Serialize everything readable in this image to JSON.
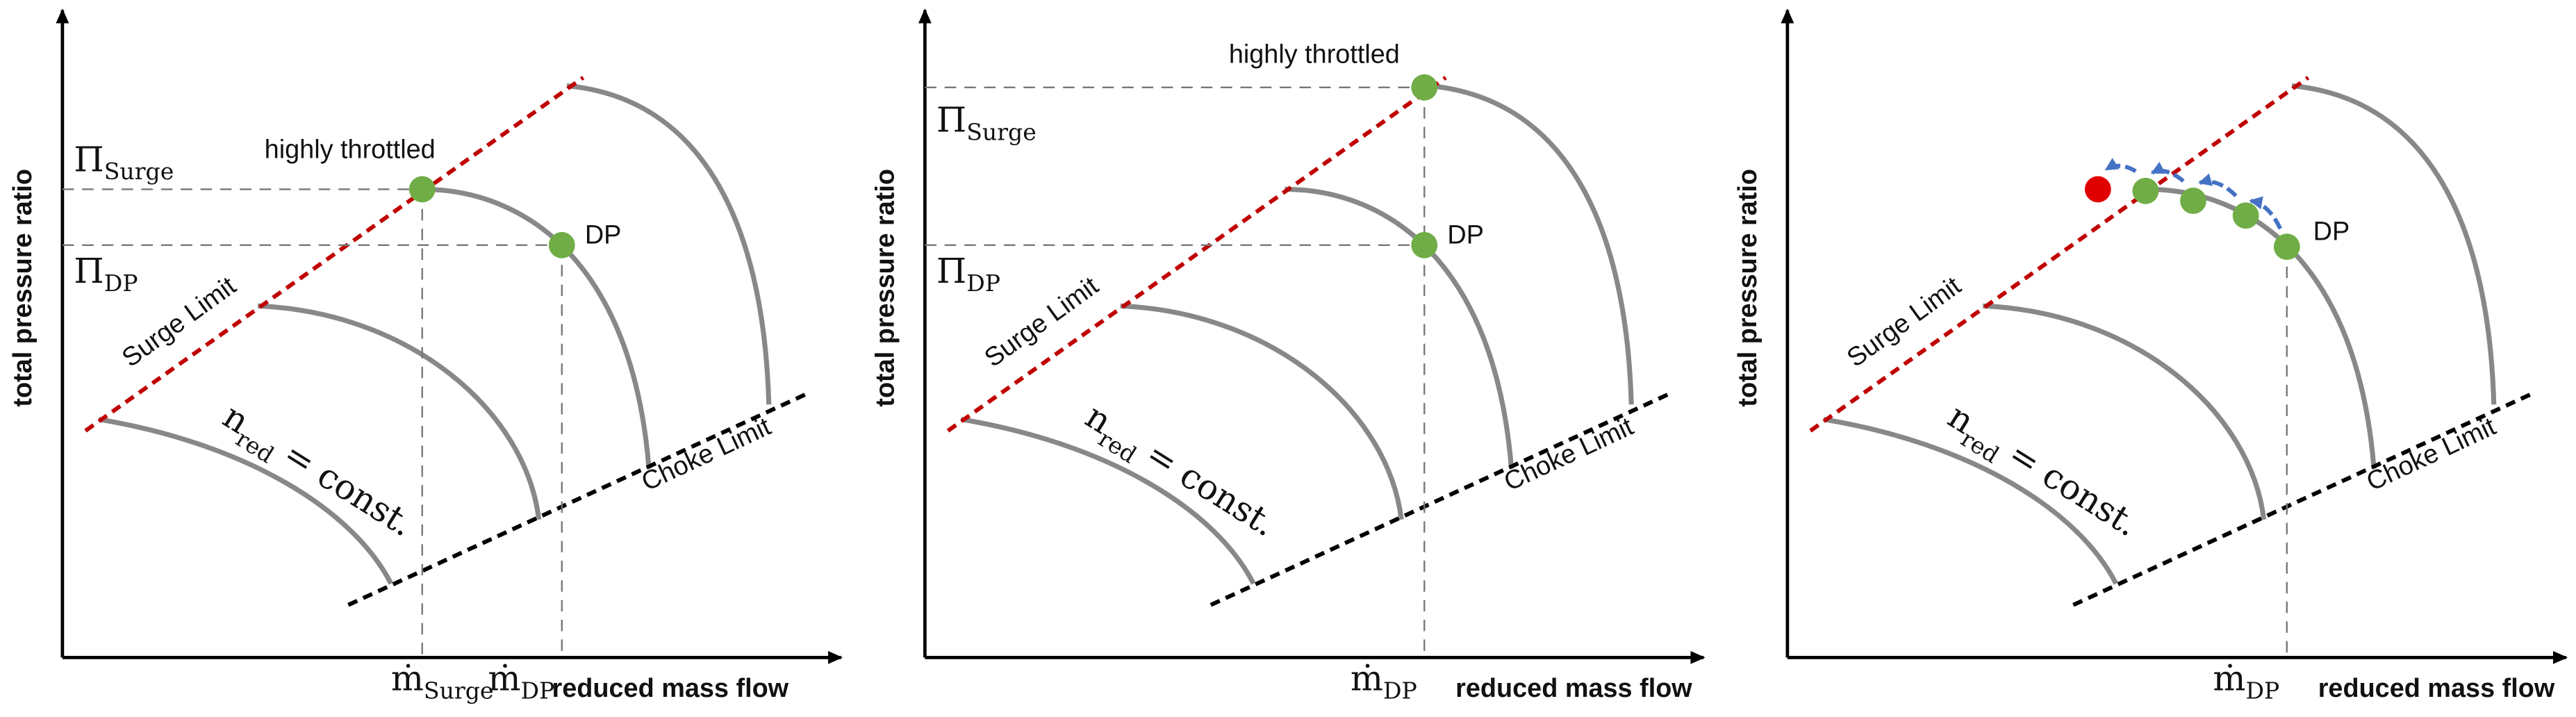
{
  "panels": [
    {
      "y_axis_label": "total pressure ratio",
      "x_axis_label": "reduced mass flow",
      "highly_throttled": "highly throttled",
      "dp": "DP",
      "surge_limit": "Surge Limit",
      "choke_limit": "Choke Limit",
      "speed_line": {
        "symbol": "n",
        "subscript": "red",
        "rest": "= const."
      },
      "pi_surge": {
        "symbol": "Π",
        "subscript": "Surge"
      },
      "pi_dp": {
        "symbol": "Π",
        "subscript": "DP"
      },
      "m_surge": {
        "symbol": "ṁ",
        "subscript": "Surge"
      },
      "m_dp": {
        "symbol": "ṁ",
        "subscript": "DP"
      }
    },
    {
      "y_axis_label": "total pressure ratio",
      "x_axis_label": "reduced mass flow",
      "highly_throttled": "highly throttled",
      "dp": "DP",
      "surge_limit": "Surge Limit",
      "choke_limit": "Choke Limit",
      "speed_line": {
        "symbol": "n",
        "subscript": "red",
        "rest": "= const."
      },
      "pi_surge": {
        "symbol": "Π",
        "subscript": "Surge"
      },
      "pi_dp": {
        "symbol": "Π",
        "subscript": "DP"
      },
      "m_dp": {
        "symbol": "ṁ",
        "subscript": "DP"
      }
    },
    {
      "y_axis_label": "total pressure ratio",
      "x_axis_label": "reduced mass flow",
      "dp": "DP",
      "surge_limit": "Surge Limit",
      "choke_limit": "Choke Limit",
      "speed_line": {
        "symbol": "n",
        "subscript": "red",
        "rest": "= const."
      },
      "m_dp": {
        "symbol": "ṁ",
        "subscript": "DP"
      }
    }
  ]
}
